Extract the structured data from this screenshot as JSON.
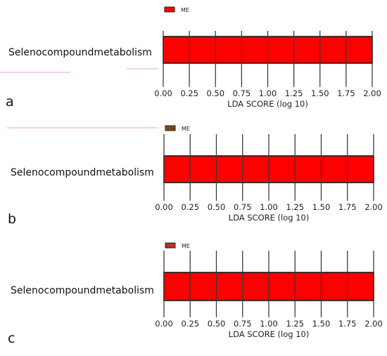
{
  "chart_data": [
    {
      "panel_label": "a",
      "type": "bar",
      "orientation": "horizontal",
      "categories": [
        "Selenocompoundmetabolism"
      ],
      "series": [
        {
          "name": "ME",
          "values": [
            2.0
          ],
          "color": "#ff0000",
          "legend_color": "#ff0000"
        }
      ],
      "xlabel": "LDA SCORE (log 10)",
      "xlim": [
        0,
        2.0
      ],
      "xticks": [
        "0.00",
        "0.25",
        "0.50",
        "0.75",
        "1.00",
        "1.25",
        "1.50",
        "1.75",
        "2.00"
      ],
      "grid": "vertical",
      "legend_position": "top-left"
    },
    {
      "panel_label": "b",
      "type": "bar",
      "orientation": "horizontal",
      "categories": [
        "Selenocompoundmetabolism"
      ],
      "series": [
        {
          "name": "ME",
          "values": [
            2.0
          ],
          "color": "#ff0000",
          "legend_color": "#7a4a12"
        }
      ],
      "xlabel": "LDA SCORE (log 10)",
      "xlim": [
        0,
        2.0
      ],
      "xticks": [
        "0.00",
        "0.25",
        "0.50",
        "0.75",
        "1.00",
        "1.25",
        "1.50",
        "1.75",
        "2.00"
      ],
      "grid": "vertical",
      "legend_position": "top-left"
    },
    {
      "panel_label": "c",
      "type": "bar",
      "orientation": "horizontal",
      "categories": [
        "Selenocompoundmetabolism"
      ],
      "series": [
        {
          "name": "ME",
          "values": [
            2.0
          ],
          "color": "#ff0000",
          "legend_color": "#b5341c"
        }
      ],
      "xlabel": "LDA SCORE (log 10)",
      "xlim": [
        0,
        2.0
      ],
      "xticks": [
        "0.00",
        "0.25",
        "0.50",
        "0.75",
        "1.00",
        "1.25",
        "1.50",
        "1.75",
        "2.00"
      ],
      "grid": "vertical",
      "legend_position": "top-left"
    }
  ]
}
